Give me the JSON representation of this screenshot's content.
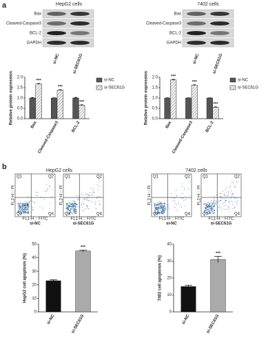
{
  "panel_labels": [
    "a",
    "b"
  ],
  "blots": [
    {
      "title": "HepG2 cells",
      "rows": [
        "Bax",
        "Cleaved-Caspase3",
        "BCL-2",
        "GAPDH"
      ],
      "lanes": [
        "si-NC",
        "si-SEC61G"
      ]
    },
    {
      "title": "7402 cells",
      "rows": [
        "Bax",
        "Cleaved-Caspase3",
        "BCL-2",
        "GAPDH"
      ],
      "lanes": [
        "si-NC",
        "si-SEC61G"
      ]
    }
  ],
  "flow": [
    {
      "title": "HepG2 cells",
      "plots": [
        "si-NC",
        "si-SEC61G"
      ]
    },
    {
      "title": "7402 cells",
      "plots": [
        "si-NC",
        "si-SEC61G"
      ]
    }
  ],
  "flow_quadrants": [
    "Q1",
    "Q2",
    "Q3",
    "Q4"
  ],
  "flow_axes": {
    "x": "FL1-H :: FITC",
    "y": "FL2-H :: PI"
  },
  "chart_data": [
    {
      "type": "bar",
      "ylabel": "Relative protein expression",
      "categories": [
        "Bax",
        "Cleaved-Caspase3",
        "BCL-2"
      ],
      "series": [
        {
          "name": "si-NC",
          "color": "#555555",
          "values": [
            1.0,
            1.0,
            1.0
          ],
          "errors": [
            0.02,
            0.01,
            0.03
          ]
        },
        {
          "name": "si-SEC61G",
          "color": "#e6e6e6",
          "pattern": "hatch",
          "values": [
            1.68,
            1.38,
            0.65
          ],
          "errors": [
            0.02,
            0.02,
            0.02
          ]
        }
      ],
      "significance": "***",
      "ylim": [
        0,
        2
      ],
      "yticks": [
        {
          "value": 0,
          "label": "0.0"
        },
        0.5,
        {
          "value": 1,
          "label": "1.0"
        },
        1.5,
        {
          "value": 2,
          "label": "2.0"
        }
      ]
    },
    {
      "type": "bar",
      "ylabel": "Relative protein expression",
      "categories": [
        "Bax",
        "Cleaved-Caspase3",
        "BCL-2"
      ],
      "series": [
        {
          "name": "si-NC",
          "color": "#555555",
          "values": [
            1.0,
            1.0,
            1.0
          ],
          "errors": [
            0.01,
            0.01,
            0.01
          ]
        },
        {
          "name": "si-SEC61G",
          "color": "#e6e6e6",
          "pattern": "hatch",
          "values": [
            1.88,
            1.62,
            0.55
          ],
          "errors": [
            0.02,
            0.02,
            0.02
          ]
        }
      ],
      "significance": "***",
      "ylim": [
        0,
        2
      ],
      "yticks": [
        {
          "value": 0,
          "label": "0.0"
        },
        0.5,
        {
          "value": 1,
          "label": "1.0"
        },
        1.5,
        {
          "value": 2,
          "label": "2.0"
        }
      ]
    },
    {
      "type": "bar",
      "ylabel": "HepG2 cell apoptosis (%)",
      "categories": [
        "si-NC",
        "si-SEC61G"
      ],
      "series": [
        {
          "name": null,
          "colors": [
            "#111111",
            "#aaaaaa"
          ],
          "values": [
            23,
            45
          ],
          "errors": [
            0.8,
            0.7
          ]
        }
      ],
      "significance": "***",
      "ylim": [
        0,
        50
      ],
      "yticks": [
        0,
        10,
        20,
        30,
        40,
        50
      ]
    },
    {
      "type": "bar",
      "ylabel": "7402 cell apoptosis (%)",
      "categories": [
        "si-NC",
        "si-SEC61G"
      ],
      "series": [
        {
          "name": null,
          "colors": [
            "#111111",
            "#aaaaaa"
          ],
          "values": [
            15,
            31
          ],
          "errors": [
            0.7,
            1.8
          ]
        }
      ],
      "significance": "***",
      "ylim": [
        0,
        40
      ],
      "yticks": [
        0,
        10,
        20,
        30,
        40
      ]
    }
  ]
}
